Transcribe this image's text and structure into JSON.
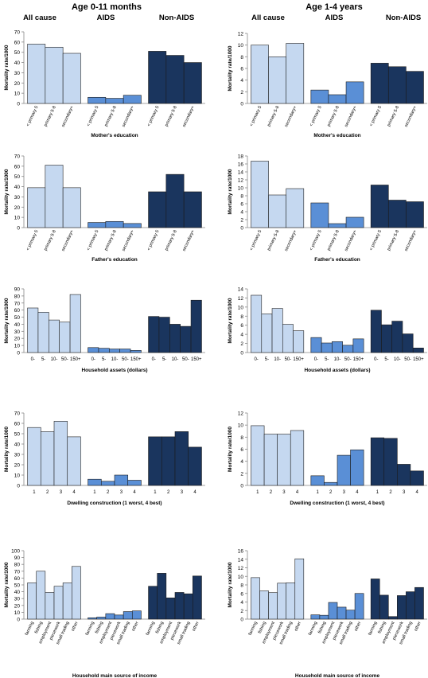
{
  "titles": {
    "left_group": "Age 0-11 months",
    "right_group": "Age 1-4 years",
    "columns": [
      "All cause",
      "AIDS",
      "Non-AIDS"
    ]
  },
  "colors": {
    "all_cause": "#c5d8f0",
    "aids": "#5a8fd6",
    "non_aids": "#1a355e"
  },
  "chart_data": [
    {
      "type": "bar",
      "panel": "age0-11-mothers-education",
      "ylabel": "Mortality rate/1000",
      "xlabel": "Mother's education",
      "ylim": [
        0,
        70
      ],
      "yticks": [
        0,
        10,
        20,
        30,
        40,
        50,
        60,
        70
      ],
      "categories": [
        "< primary 5",
        "primary 5-8",
        "secondary+"
      ],
      "series": [
        {
          "values": [
            58,
            55,
            49
          ]
        },
        {
          "values": [
            6,
            5,
            8
          ]
        },
        {
          "values": [
            51,
            47,
            40
          ]
        }
      ]
    },
    {
      "type": "bar",
      "panel": "age1-4-mothers-education",
      "ylabel": "Mortality rate/1000",
      "xlabel": "Mother's education",
      "ylim": [
        0,
        12
      ],
      "yticks": [
        0,
        2,
        4,
        6,
        8,
        10,
        12
      ],
      "categories": [
        "< primary 5",
        "primary 5-8",
        "secondary+"
      ],
      "series": [
        {
          "values": [
            10.0,
            8.0,
            10.3
          ]
        },
        {
          "values": [
            2.3,
            1.5,
            3.7
          ]
        },
        {
          "values": [
            6.9,
            6.3,
            5.5
          ]
        }
      ]
    },
    {
      "type": "bar",
      "panel": "age0-11-fathers-education",
      "ylabel": "Mortality rate/1000",
      "xlabel": "Father's education",
      "ylim": [
        0,
        70
      ],
      "yticks": [
        0,
        10,
        20,
        30,
        40,
        50,
        60,
        70
      ],
      "categories": [
        "< primary 5",
        "primary 5-8",
        "secondary+"
      ],
      "series": [
        {
          "values": [
            39,
            61,
            39
          ]
        },
        {
          "values": [
            5,
            6,
            4
          ]
        },
        {
          "values": [
            35,
            52,
            35
          ]
        }
      ]
    },
    {
      "type": "bar",
      "panel": "age1-4-fathers-education",
      "ylabel": "Mortality rate/1000",
      "xlabel": "Father's education",
      "ylim": [
        0,
        18
      ],
      "yticks": [
        0,
        2,
        4,
        6,
        8,
        10,
        12,
        14,
        16,
        18
      ],
      "categories": [
        "< primary 5",
        "primary 5-8",
        "secondary+"
      ],
      "series": [
        {
          "values": [
            16.7,
            8.2,
            9.8
          ]
        },
        {
          "values": [
            6.2,
            1.0,
            2.6
          ]
        },
        {
          "values": [
            10.7,
            6.9,
            6.5
          ]
        }
      ]
    },
    {
      "type": "bar",
      "panel": "age0-11-household-assets",
      "ylabel": "Mortality rate/1000",
      "xlabel": "Household assets (dollars)",
      "ylim": [
        0,
        90
      ],
      "yticks": [
        0,
        10,
        20,
        30,
        40,
        50,
        60,
        70,
        80,
        90
      ],
      "categories": [
        "0-",
        "5-",
        "10-",
        "50-",
        "150+"
      ],
      "series": [
        {
          "values": [
            63,
            57,
            46,
            43,
            82
          ]
        },
        {
          "values": [
            7,
            6,
            5,
            5,
            3
          ]
        },
        {
          "values": [
            51,
            50,
            40,
            37,
            74
          ]
        }
      ]
    },
    {
      "type": "bar",
      "panel": "age1-4-household-assets",
      "ylabel": "Mortality rate/1000",
      "xlabel": "Household assets (dollars)",
      "ylim": [
        0,
        14
      ],
      "yticks": [
        0,
        2,
        4,
        6,
        8,
        10,
        12,
        14
      ],
      "categories": [
        "0-",
        "5-",
        "10-",
        "50-",
        "150+"
      ],
      "series": [
        {
          "values": [
            12.6,
            8.5,
            9.7,
            6.2,
            4.8
          ]
        },
        {
          "values": [
            3.3,
            2.1,
            2.4,
            1.6,
            3.0
          ]
        },
        {
          "values": [
            9.3,
            6.1,
            6.9,
            4.1,
            1.0
          ]
        }
      ]
    },
    {
      "type": "bar",
      "panel": "age0-11-dwelling-construction",
      "ylabel": "Mortality rate/1000",
      "xlabel": "Dwelling construction (1 worst, 4 best)",
      "ylim": [
        0,
        70
      ],
      "yticks": [
        0,
        10,
        20,
        30,
        40,
        50,
        60,
        70
      ],
      "categories": [
        "1",
        "2",
        "3",
        "4"
      ],
      "series": [
        {
          "values": [
            56,
            52,
            62,
            47
          ]
        },
        {
          "values": [
            6,
            4,
            10,
            5
          ]
        },
        {
          "values": [
            47,
            47,
            52,
            37
          ]
        }
      ]
    },
    {
      "type": "bar",
      "panel": "age1-4-dwelling-construction",
      "ylabel": "Mortality rate/1000",
      "xlabel": "Dwelling construction (1 worst, 4 best)",
      "ylim": [
        0,
        12
      ],
      "yticks": [
        0,
        2,
        4,
        6,
        8,
        10,
        12
      ],
      "categories": [
        "1",
        "2",
        "3",
        "4"
      ],
      "series": [
        {
          "values": [
            9.9,
            8.5,
            8.5,
            9.1
          ]
        },
        {
          "values": [
            1.6,
            0.5,
            5.0,
            5.9
          ]
        },
        {
          "values": [
            7.9,
            7.8,
            3.5,
            2.4
          ]
        }
      ]
    },
    {
      "type": "bar",
      "panel": "age0-11-income-source",
      "ylabel": "Mortality rate/1000",
      "xlabel": "Household main source of income",
      "ylim": [
        0,
        100
      ],
      "yticks": [
        0,
        10,
        20,
        30,
        40,
        50,
        60,
        70,
        80,
        90,
        100
      ],
      "categories": [
        "farming",
        "fishing",
        "employment",
        "piecework",
        "small trading",
        "other"
      ],
      "series": [
        {
          "values": [
            53,
            70,
            39,
            48,
            53,
            77
          ]
        },
        {
          "values": [
            2,
            3,
            8,
            6,
            11,
            12
          ]
        },
        {
          "values": [
            48,
            67,
            31,
            39,
            37,
            63
          ]
        }
      ]
    },
    {
      "type": "bar",
      "panel": "age1-4-income-source",
      "ylabel": "Mortality rate/1000",
      "xlabel": "Household main source of income",
      "ylim": [
        0,
        16
      ],
      "yticks": [
        0,
        2,
        4,
        6,
        8,
        10,
        12,
        14,
        16
      ],
      "categories": [
        "farming",
        "fishing",
        "employment",
        "piecework",
        "small trading",
        "other"
      ],
      "series": [
        {
          "values": [
            9.7,
            6.6,
            6.2,
            8.4,
            8.5,
            14.1
          ]
        },
        {
          "values": [
            1.0,
            0.9,
            3.9,
            2.8,
            2.1,
            6.0
          ]
        },
        {
          "values": [
            9.4,
            5.6,
            0.6,
            5.5,
            6.4,
            7.4
          ]
        }
      ]
    }
  ]
}
